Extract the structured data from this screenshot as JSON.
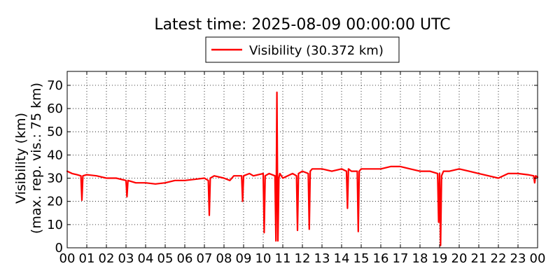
{
  "chart_data": {
    "type": "line",
    "title": "Latest time: 2025-08-09 00:00:00 UTC",
    "ylabel_line1": "Visibility (km)",
    "ylabel_line2": "(max. rep. vis.: 75 km)",
    "xlabel": "",
    "xlim": [
      0,
      24
    ],
    "ylim": [
      0,
      76
    ],
    "grid": true,
    "legend_position": "top-center",
    "x_ticks": [
      "00",
      "01",
      "02",
      "03",
      "04",
      "05",
      "06",
      "07",
      "08",
      "09",
      "10",
      "11",
      "12",
      "13",
      "14",
      "15",
      "16",
      "17",
      "18",
      "19",
      "20",
      "21",
      "22",
      "23",
      "00"
    ],
    "y_ticks": [
      0,
      10,
      20,
      30,
      40,
      50,
      60,
      70
    ],
    "series": [
      {
        "name": "Visibility (30.372 km)",
        "color": "#ff0000",
        "x": [
          0,
          0.25,
          0.5,
          0.7,
          0.75,
          0.8,
          1.0,
          1.5,
          2.0,
          2.5,
          3.0,
          3.05,
          3.1,
          3.5,
          4.0,
          4.5,
          5.0,
          5.5,
          6.0,
          6.5,
          7.0,
          7.2,
          7.25,
          7.3,
          7.5,
          8.0,
          8.3,
          8.5,
          8.9,
          8.95,
          9.0,
          9.3,
          9.5,
          10.0,
          10.05,
          10.1,
          10.3,
          10.6,
          10.65,
          10.7,
          10.75,
          10.8,
          10.85,
          11.0,
          11.5,
          11.7,
          11.75,
          11.8,
          12.0,
          12.3,
          12.35,
          12.4,
          12.5,
          13.0,
          13.5,
          14.0,
          14.25,
          14.3,
          14.35,
          14.5,
          14.8,
          14.85,
          14.9,
          15.0,
          15.5,
          16.0,
          16.5,
          17.0,
          17.5,
          18.0,
          18.5,
          18.9,
          18.95,
          19.0,
          19.05,
          19.1,
          19.2,
          19.3,
          19.5,
          20.0,
          20.5,
          21.0,
          21.5,
          22.0,
          22.5,
          23.0,
          23.5,
          23.8,
          23.85,
          23.9,
          24.0
        ],
        "y": [
          33,
          32,
          31.5,
          31,
          20.5,
          31,
          31.5,
          31,
          30,
          30,
          29,
          22,
          29,
          28,
          28,
          27.5,
          28,
          29,
          29,
          29.5,
          30,
          29,
          14,
          30,
          31,
          30,
          29,
          31,
          31,
          20,
          31,
          32,
          31,
          32,
          6.5,
          31,
          32,
          31,
          3,
          67,
          3,
          30,
          32,
          30,
          32,
          31,
          7.5,
          32,
          33,
          32,
          8,
          33,
          34,
          34,
          33,
          34,
          33,
          17,
          34,
          33,
          33,
          7,
          33,
          34,
          34,
          34,
          35,
          35,
          34,
          33,
          33,
          32,
          11,
          32,
          1,
          31,
          33,
          33,
          33,
          34,
          33,
          32,
          31,
          30,
          32,
          32,
          31.5,
          31,
          28,
          31,
          30.4
        ]
      }
    ]
  }
}
